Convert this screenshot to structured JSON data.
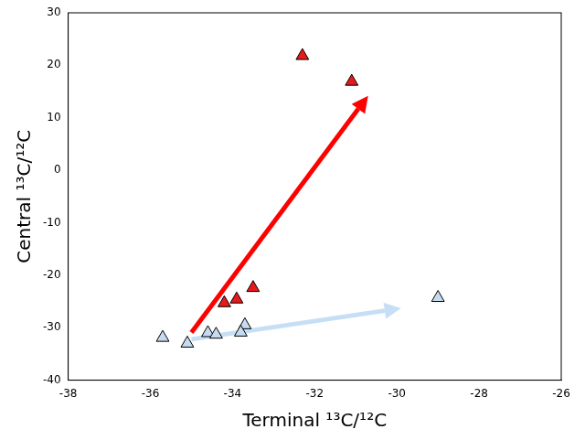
{
  "chart_data": {
    "type": "scatter",
    "x_label": "Terminal ¹³C/¹²C",
    "y_label": "Central ¹³C/¹²C",
    "series": [
      {
        "color": "#e8191a",
        "marker": "triangle",
        "x": [
          -32.3,
          -31.1,
          -34.2,
          -33.9,
          -33.5
        ],
        "y": [
          21.8,
          16.9,
          -25.3,
          -24.6,
          -22.4
        ]
      },
      {
        "color": "#c6dbef",
        "marker": "triangle",
        "x": [
          -35.7,
          -35.1,
          -34.6,
          -34.4,
          -33.7,
          -33.8,
          -29.0
        ],
        "y": [
          -31.9,
          -33.0,
          -31.0,
          -31.3,
          -29.5,
          -30.9,
          -24.3
        ]
      }
    ],
    "arrows": [
      {
        "color": "#ff0000",
        "x": [
          -35.0,
          -30.7
        ],
        "y": [
          -30.9,
          14.2
        ]
      },
      {
        "color": "#c6dff5",
        "x": [
          -35.0,
          -29.9
        ],
        "y": [
          -32.2,
          -26.3
        ]
      }
    ],
    "xlim": [
      -38,
      -26
    ],
    "xticks": [
      -38,
      -36,
      -34,
      -32,
      -30,
      -28,
      -26
    ],
    "ylim": [
      -40,
      30
    ],
    "yticks": [
      -40,
      -30,
      -20,
      -10,
      0,
      10,
      20,
      30
    ],
    "grid": false
  }
}
